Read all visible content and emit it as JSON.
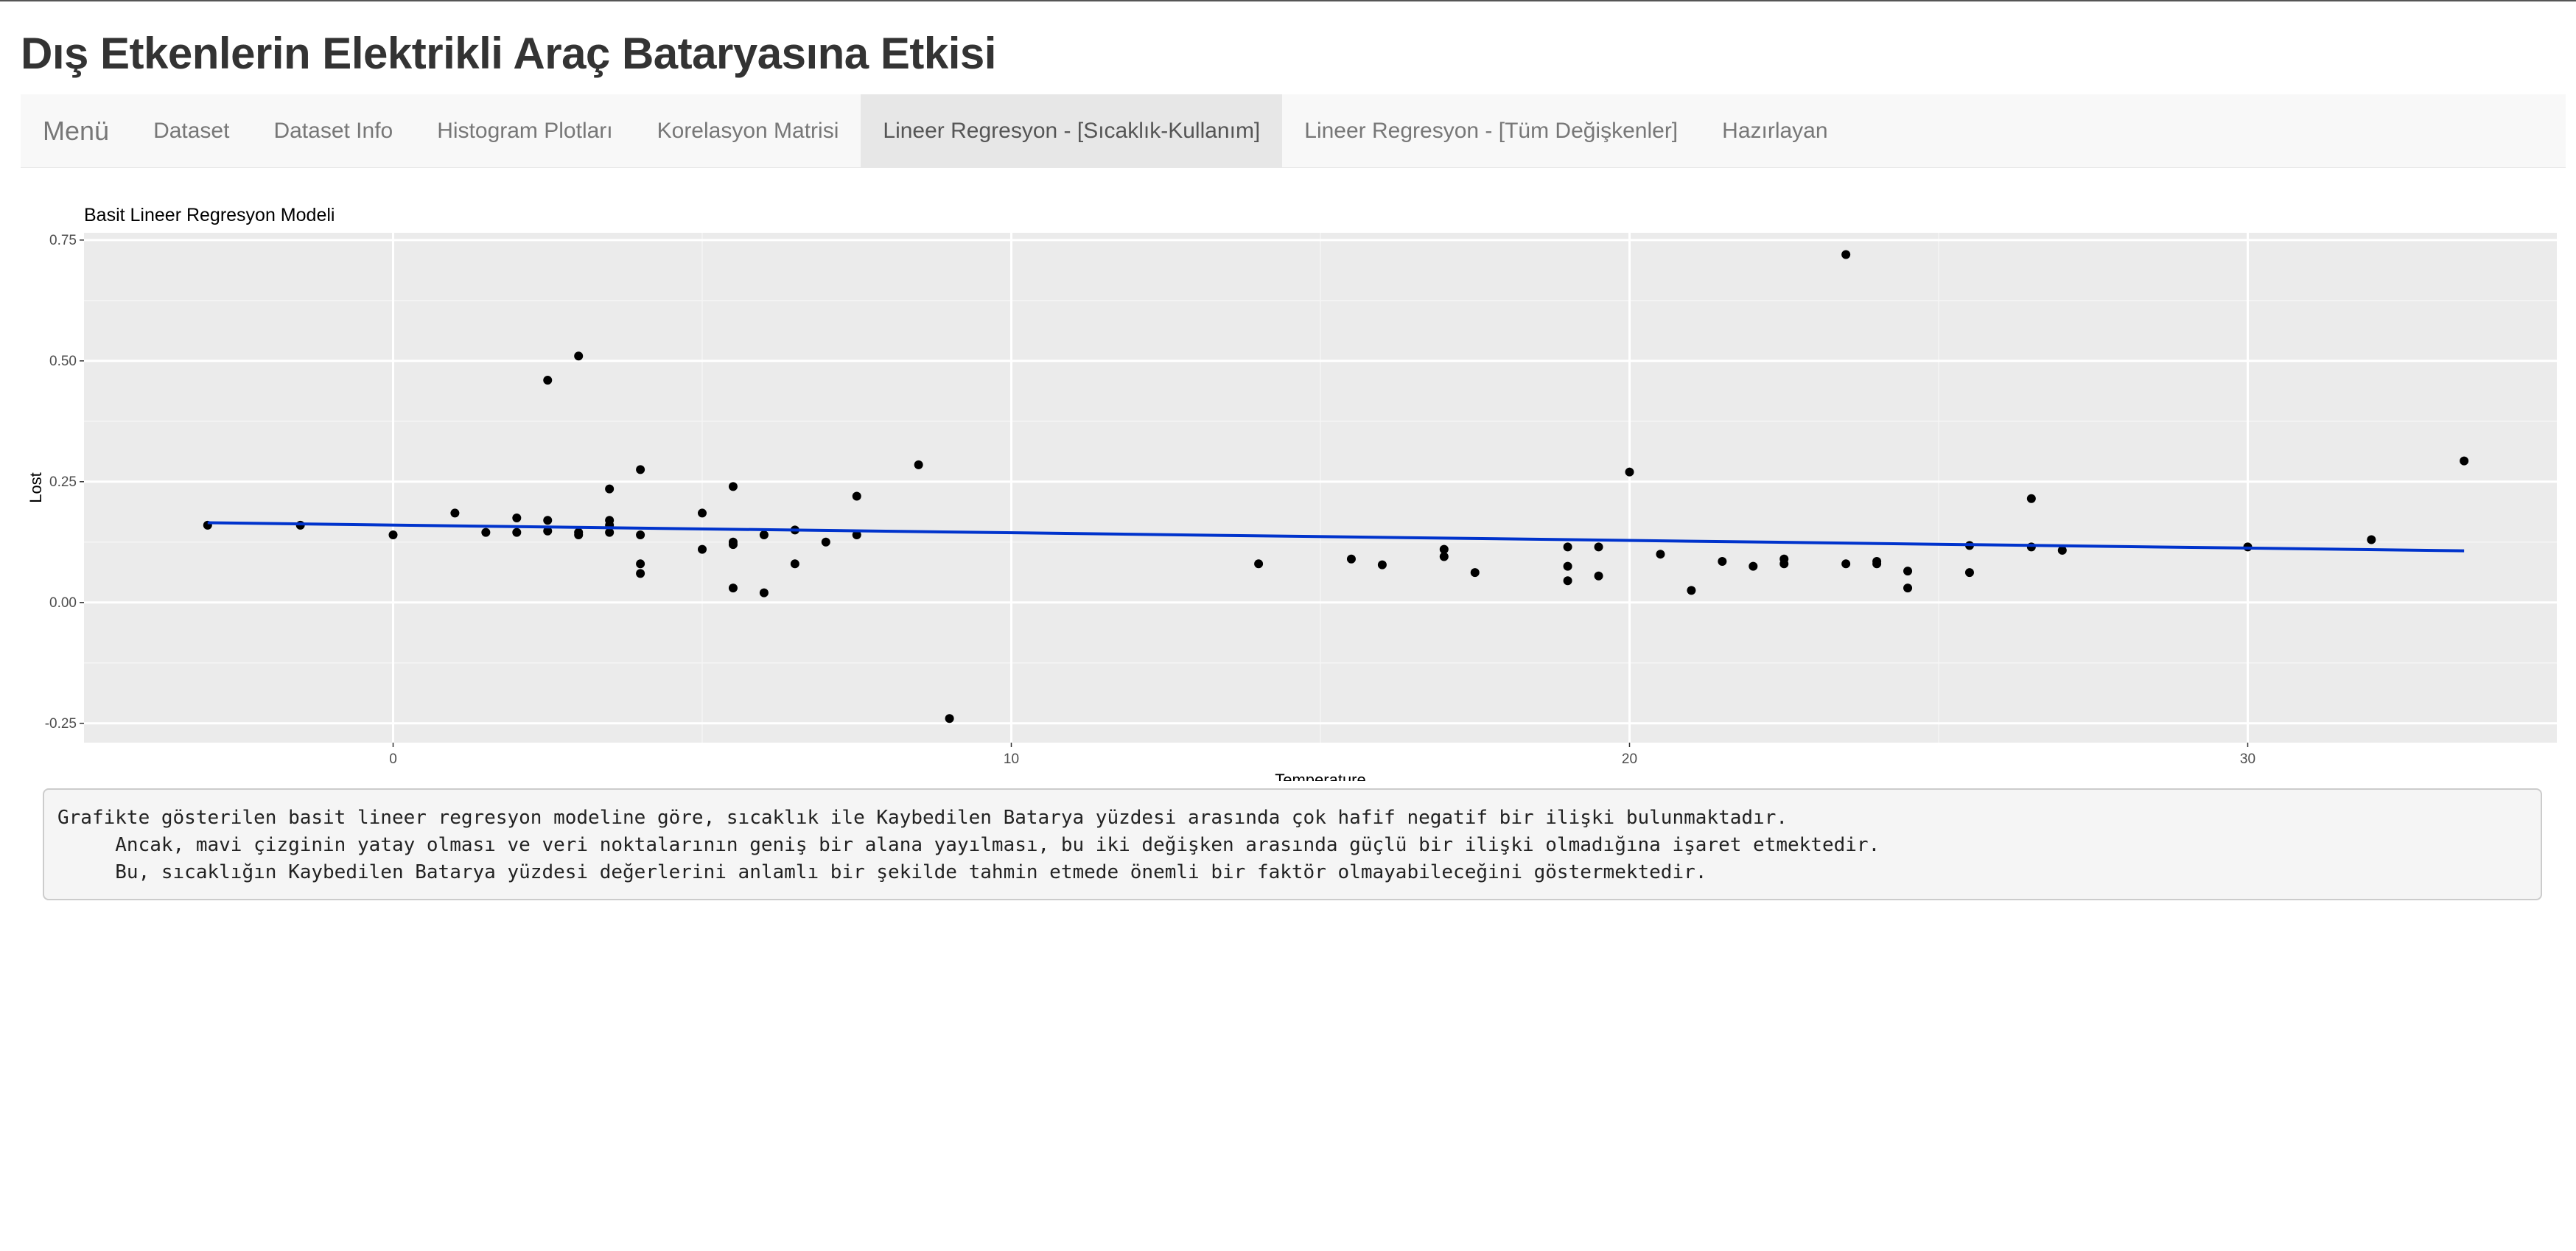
{
  "page": {
    "title": "Dış Etkenlerin Elektrikli Araç Bataryasına Etkisi"
  },
  "nav": {
    "brand": "Menü",
    "items": [
      {
        "label": "Dataset",
        "active": false
      },
      {
        "label": "Dataset Info",
        "active": false
      },
      {
        "label": "Histogram Plotları",
        "active": false
      },
      {
        "label": "Korelasyon Matrisi",
        "active": false
      },
      {
        "label": "Lineer Regresyon - [Sıcaklık-Kullanım]",
        "active": true
      },
      {
        "label": "Lineer Regresyon - [Tüm Değişkenler]",
        "active": false
      },
      {
        "label": "Hazırlayan",
        "active": false
      }
    ]
  },
  "output_text": "Grafikte gösterilen basit lineer regresyon modeline göre, sıcaklık ile Kaybedilen Batarya yüzdesi arasında çok hafif negatif bir ilişki bulunmaktadır.\n     Ancak, mavi çizginin yatay olması ve veri noktalarının geniş bir alana yayılması, bu iki değişken arasında güçlü bir ilişki olmadığına işaret etmektedir.\n     Bu, sıcaklığın Kaybedilen Batarya yüzdesi değerlerini anlamlı bir şekilde tahmin etmede önemli bir faktör olmayabileceğini göstermektedir.",
  "chart_data": {
    "type": "scatter",
    "title": "Basit Lineer Regresyon Modeli",
    "xlabel": "Temperature",
    "ylabel": "Lost",
    "xlim": [
      -5,
      35
    ],
    "ylim": [
      -0.29,
      0.765
    ],
    "xticks": [
      0,
      10,
      20,
      30
    ],
    "yticks": [
      -0.25,
      0.0,
      0.25,
      0.5,
      0.75
    ],
    "xtick_labels": [
      "0",
      "10",
      "20",
      "30"
    ],
    "ytick_labels": [
      "-0.25",
      "0.00",
      "0.25",
      "0.50",
      "0.75"
    ],
    "grid": true,
    "background": "#ebebeb",
    "point_color": "#000000",
    "fit_color": "#0033cc",
    "points": [
      {
        "x": -3,
        "y": 0.16
      },
      {
        "x": -1.5,
        "y": 0.16
      },
      {
        "x": 0,
        "y": 0.14
      },
      {
        "x": 1,
        "y": 0.185
      },
      {
        "x": 1.5,
        "y": 0.145
      },
      {
        "x": 2,
        "y": 0.175
      },
      {
        "x": 2,
        "y": 0.145
      },
      {
        "x": 2.5,
        "y": 0.46
      },
      {
        "x": 2.5,
        "y": 0.17
      },
      {
        "x": 2.5,
        "y": 0.148
      },
      {
        "x": 3,
        "y": 0.51
      },
      {
        "x": 3,
        "y": 0.145
      },
      {
        "x": 3,
        "y": 0.14
      },
      {
        "x": 3.5,
        "y": 0.235
      },
      {
        "x": 3.5,
        "y": 0.17
      },
      {
        "x": 3.5,
        "y": 0.16
      },
      {
        "x": 3.5,
        "y": 0.145
      },
      {
        "x": 4,
        "y": 0.275
      },
      {
        "x": 4,
        "y": 0.14
      },
      {
        "x": 4,
        "y": 0.08
      },
      {
        "x": 4,
        "y": 0.06
      },
      {
        "x": 5,
        "y": 0.185
      },
      {
        "x": 5,
        "y": 0.11
      },
      {
        "x": 5.5,
        "y": 0.24
      },
      {
        "x": 5.5,
        "y": 0.125
      },
      {
        "x": 5.5,
        "y": 0.12
      },
      {
        "x": 5.5,
        "y": 0.03
      },
      {
        "x": 6,
        "y": 0.14
      },
      {
        "x": 6,
        "y": 0.02
      },
      {
        "x": 6.5,
        "y": 0.15
      },
      {
        "x": 6.5,
        "y": 0.08
      },
      {
        "x": 7,
        "y": 0.125
      },
      {
        "x": 7.5,
        "y": 0.22
      },
      {
        "x": 7.5,
        "y": 0.14
      },
      {
        "x": 8.5,
        "y": 0.285
      },
      {
        "x": 9,
        "y": -0.24
      },
      {
        "x": 14,
        "y": 0.08
      },
      {
        "x": 15.5,
        "y": 0.09
      },
      {
        "x": 16,
        "y": 0.078
      },
      {
        "x": 17,
        "y": 0.11
      },
      {
        "x": 17,
        "y": 0.095
      },
      {
        "x": 17.5,
        "y": 0.062
      },
      {
        "x": 19,
        "y": 0.115
      },
      {
        "x": 19,
        "y": 0.075
      },
      {
        "x": 19,
        "y": 0.045
      },
      {
        "x": 19.5,
        "y": 0.115
      },
      {
        "x": 19.5,
        "y": 0.055
      },
      {
        "x": 20,
        "y": 0.27
      },
      {
        "x": 20.5,
        "y": 0.1
      },
      {
        "x": 21,
        "y": 0.025
      },
      {
        "x": 21.5,
        "y": 0.085
      },
      {
        "x": 22,
        "y": 0.075
      },
      {
        "x": 22.5,
        "y": 0.09
      },
      {
        "x": 22.5,
        "y": 0.08
      },
      {
        "x": 23.5,
        "y": 0.72
      },
      {
        "x": 23.5,
        "y": 0.08
      },
      {
        "x": 24,
        "y": 0.085
      },
      {
        "x": 24,
        "y": 0.08
      },
      {
        "x": 24.5,
        "y": 0.065
      },
      {
        "x": 24.5,
        "y": 0.03
      },
      {
        "x": 25.5,
        "y": 0.118
      },
      {
        "x": 25.5,
        "y": 0.062
      },
      {
        "x": 26.5,
        "y": 0.215
      },
      {
        "x": 26.5,
        "y": 0.115
      },
      {
        "x": 27,
        "y": 0.108
      },
      {
        "x": 30,
        "y": 0.115
      },
      {
        "x": 32,
        "y": 0.13
      },
      {
        "x": 33.5,
        "y": 0.293
      }
    ],
    "fit_line": {
      "x": [
        -3,
        33.5
      ],
      "y": [
        0.165,
        0.107
      ]
    }
  }
}
